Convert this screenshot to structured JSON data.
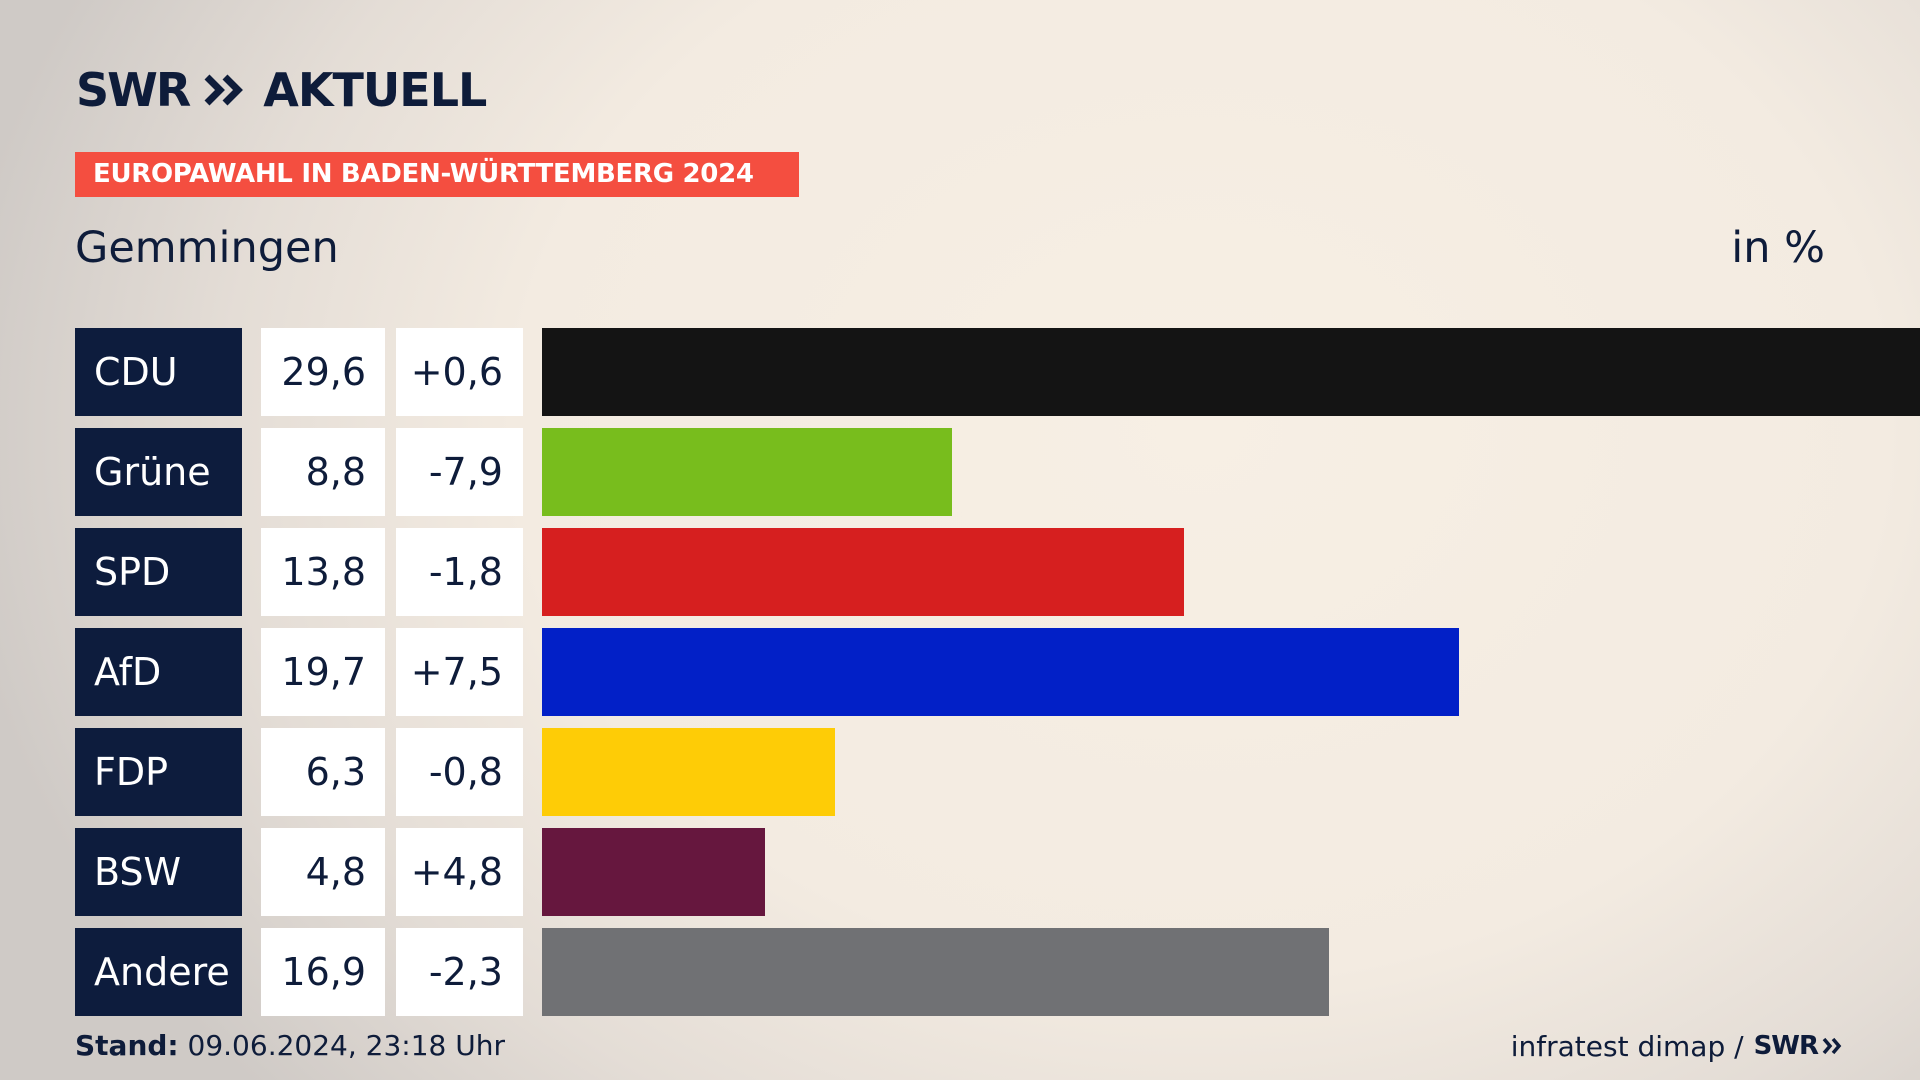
{
  "header": {
    "logo_swr": "SWR",
    "logo_aktuell": "AKTUELL",
    "banner": "EUROPAWAHL IN BADEN-WÜRTTEMBERG 2024",
    "place": "Gemmingen",
    "unit": "in %"
  },
  "colors": {
    "navy": "#0d1c3d",
    "banner_red": "#f44e40"
  },
  "chart_data": {
    "type": "bar",
    "orientation": "horizontal",
    "title": "Gemmingen",
    "unit": "in %",
    "xlim": [
      0,
      29.6
    ],
    "categories": [
      "CDU",
      "Grüne",
      "SPD",
      "AfD",
      "FDP",
      "BSW",
      "Andere"
    ],
    "values": [
      29.6,
      8.8,
      13.8,
      19.7,
      6.3,
      4.8,
      16.9
    ],
    "value_labels": [
      "29,6",
      "8,8",
      "13,8",
      "19,7",
      "6,3",
      "4,8",
      "16,9"
    ],
    "diff_labels": [
      "+0,6",
      "-7,9",
      "-1,8",
      "+7,5",
      "-0,8",
      "+4,8",
      "-2,3"
    ],
    "diffs": [
      0.6,
      -7.9,
      -1.8,
      7.5,
      -0.8,
      4.8,
      -2.3
    ],
    "colors": [
      "#141414",
      "#78bd1d",
      "#d61f1f",
      "#0220c7",
      "#fecc06",
      "#66173e",
      "#707174"
    ]
  },
  "footer": {
    "stand_label": "Stand:",
    "stand_value": "09.06.2024, 23:18 Uhr",
    "source": "infratest dimap /",
    "source_logo": "SWR"
  }
}
